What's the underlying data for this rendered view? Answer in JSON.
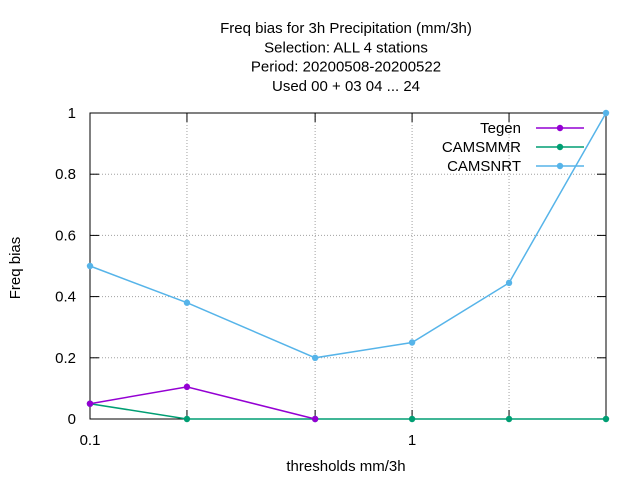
{
  "chart_data": {
    "type": "line",
    "title_lines": [
      "Freq bias  for 3h Precipitation (mm/3h)",
      "Selection: ALL      4 stations",
      "Period: 20200508-20200522",
      "Used  00 + 03 04 ... 24"
    ],
    "xlabel": "thresholds mm/3h",
    "ylabel": "Freq bias",
    "x_scale": "log",
    "xlim": [
      0.1,
      4.0
    ],
    "ylim": [
      0,
      1
    ],
    "x": [
      0.1,
      0.2,
      0.5,
      1.0,
      2.0,
      4.0
    ],
    "x_ticks": [
      {
        "value": 0.1,
        "label": "0.1"
      },
      {
        "value": 1.0,
        "label": "1"
      }
    ],
    "y_ticks": [
      {
        "value": 0,
        "label": "0"
      },
      {
        "value": 0.2,
        "label": "0.2"
      },
      {
        "value": 0.4,
        "label": "0.4"
      },
      {
        "value": 0.6,
        "label": "0.6"
      },
      {
        "value": 0.8,
        "label": "0.8"
      },
      {
        "value": 1.0,
        "label": "1"
      }
    ],
    "grid": true,
    "legend_position": "top-right",
    "series": [
      {
        "name": "Tegen",
        "color": "#9400d3",
        "values": [
          0.05,
          0.105,
          0.0,
          null,
          null,
          null
        ]
      },
      {
        "name": "CAMSMMR",
        "color": "#009e73",
        "values": [
          0.05,
          0.0,
          0.0,
          0.0,
          0.0,
          0.0
        ]
      },
      {
        "name": "CAMSNRT",
        "color": "#56b4e9",
        "values": [
          0.5,
          0.38,
          0.2,
          0.25,
          0.445,
          1.0
        ]
      }
    ]
  }
}
